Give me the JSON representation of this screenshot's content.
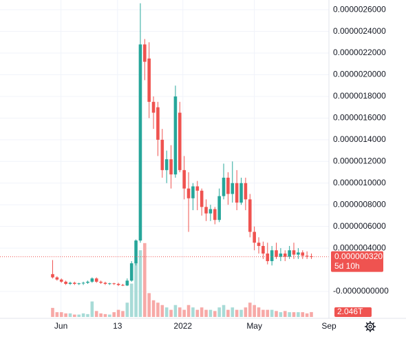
{
  "chart_data": {
    "type": "candlestick",
    "open": [
      1.6e-07,
      1.3e-07,
      1.1e-07,
      9e-08,
      7e-08,
      8e-08,
      7e-08,
      7.5e-08,
      8e-08,
      9e-08,
      1.2e-07,
      9e-08,
      8e-08,
      7e-08,
      7.5e-08,
      7e-08,
      6e-08,
      5.5e-08,
      1e-07,
      2.6e-07,
      4.7e-07,
      2.28e-06,
      2.15e-06,
      1.75e-06,
      1.7e-06,
      1.4e-06,
      1.12e-06,
      1.22e-06,
      1.08e-06,
      1.65e-06,
      1.12e-06,
      9.5e-07,
      8.6e-07,
      9.7e-07,
      9.3e-07,
      7.8e-07,
      7.2e-07,
      7.6e-07,
      6.6e-07,
      8.8e-07,
      1.05e-06,
      9e-07,
      1e-06,
      8.2e-07,
      1e-06,
      8.5e-07,
      5.5e-07,
      4.5e-07,
      4.2e-07,
      3.5e-07,
      2.8e-07,
      3.8e-07,
      3.2e-07,
      3.5e-07,
      3.2e-07,
      3.8e-07,
      3.4e-07,
      3.6e-07,
      3.3e-07,
      3.25e-07
    ],
    "high": [
      2.9e-07,
      1.4e-07,
      1.2e-07,
      1e-07,
      9e-08,
      9e-08,
      8e-08,
      9e-08,
      1e-07,
      1.3e-07,
      1.3e-07,
      1e-07,
      9e-08,
      8e-08,
      8e-08,
      8e-08,
      7e-08,
      1.2e-07,
      2.8e-07,
      4.8e-07,
      2.66e-06,
      2.33e-06,
      2.3e-06,
      1.8e-06,
      1.75e-06,
      1.5e-06,
      1.3e-06,
      1.35e-06,
      1.9e-06,
      1.75e-06,
      1.25e-06,
      1.1e-06,
      1e-06,
      1.02e-06,
      9.5e-07,
      8.5e-07,
      8e-07,
      7.8e-07,
      9.5e-07,
      1.18e-06,
      1.1e-06,
      1.2e-06,
      1.12e-06,
      1.05e-06,
      1.05e-06,
      9e-07,
      6e-07,
      5e-07,
      4.6e-07,
      4.5e-07,
      4.2e-07,
      4.5e-07,
      4e-07,
      3.8e-07,
      4.2e-07,
      4.5e-07,
      4e-07,
      3.8e-07,
      3.7e-07,
      3.5e-07
    ],
    "low": [
      1.2e-07,
      1e-07,
      8e-08,
      6e-08,
      6e-08,
      6e-08,
      6e-08,
      6e-08,
      7e-08,
      8e-08,
      8e-08,
      7e-08,
      6e-08,
      6e-08,
      6e-08,
      5e-08,
      5e-08,
      5e-08,
      9e-08,
      2.4e-07,
      4.5e-07,
      1.95e-06,
      1.6e-06,
      1.5e-06,
      1.25e-06,
      1.05e-06,
      1e-06,
      9.5e-07,
      1.05e-06,
      1.1e-06,
      8.5e-07,
      5.5e-07,
      7.5e-07,
      7.5e-07,
      7e-07,
      6.5e-07,
      6.5e-07,
      6.2e-07,
      6.4e-07,
      8.5e-07,
      8e-07,
      8.2e-07,
      7.5e-07,
      8e-07,
      7.5e-07,
      5e-07,
      3.8e-07,
      3.5e-07,
      3e-07,
      2.5e-07,
      2.4e-07,
      3e-07,
      2.8e-07,
      2.8e-07,
      3e-07,
      3e-07,
      3e-07,
      3e-07,
      3e-07,
      3e-07
    ],
    "close": [
      1.3e-07,
      1.1e-07,
      9e-08,
      7e-08,
      8e-08,
      7e-08,
      7.5e-08,
      8e-08,
      9e-08,
      1.2e-07,
      9e-08,
      8e-08,
      7e-08,
      7.5e-08,
      7e-08,
      6e-08,
      5.5e-08,
      1e-07,
      2.6e-07,
      4.7e-07,
      2.28e-06,
      2.12e-06,
      1.75e-06,
      1.65e-06,
      1.4e-06,
      1.12e-06,
      1.22e-06,
      1.08e-06,
      1.8e-06,
      1.12e-06,
      9.5e-07,
      8.6e-07,
      9.7e-07,
      9.3e-07,
      7.8e-07,
      7.2e-07,
      7.6e-07,
      6.6e-07,
      8.8e-07,
      1.05e-06,
      9e-07,
      1e-06,
      8.2e-07,
      1e-06,
      8.5e-07,
      5.5e-07,
      4.5e-07,
      4.2e-07,
      3.5e-07,
      2.8e-07,
      3.8e-07,
      3.2e-07,
      3.5e-07,
      3.2e-07,
      3.8e-07,
      3.4e-07,
      3.6e-07,
      3.3e-07,
      3.25e-07,
      3.201e-07
    ],
    "volume": [
      3.8,
      2,
      2,
      1.5,
      1.5,
      1,
      1,
      1.5,
      1.2,
      6.5,
      2.5,
      1.5,
      1.2,
      1,
      2,
      3,
      2.5,
      6,
      14,
      23,
      28,
      31,
      10,
      7,
      6,
      5,
      4,
      3,
      5,
      4,
      3,
      5,
      4,
      3,
      4,
      3,
      3,
      2.5,
      4,
      5,
      3,
      4,
      3,
      3,
      4,
      6,
      5,
      4,
      3,
      3,
      3,
      2.5,
      2,
      2.5,
      2,
      2,
      2,
      2,
      1.5,
      2.046
    ],
    "up_color": "#26a69a",
    "down_color": "#ef5350",
    "up_volume_color": "#a8dbd7",
    "down_volume_color": "#f7a9a7",
    "xlim": [
      -12,
      63
    ],
    "xticks": [
      {
        "value": 1.9,
        "label": "Jun"
      },
      {
        "value": 14.8,
        "label": "13"
      },
      {
        "value": 29.7,
        "label": "2022"
      },
      {
        "value": 46,
        "label": "May"
      },
      {
        "value": 63,
        "label": "Sep"
      }
    ],
    "ylim": [
      -2.48e-07,
      2.69e-06
    ],
    "yticks": [
      {
        "value": 0,
        "label": "-0.0000000000"
      },
      {
        "value": 4e-07,
        "label": "0.0000004000"
      },
      {
        "value": 6e-07,
        "label": "0.0000006000"
      },
      {
        "value": 8e-07,
        "label": "0.0000008000"
      },
      {
        "value": 1e-06,
        "label": "0.0000010000"
      },
      {
        "value": 1.2e-06,
        "label": "0.0000012000"
      },
      {
        "value": 1.4e-06,
        "label": "0.0000014000"
      },
      {
        "value": 1.6e-06,
        "label": "0.0000016000"
      },
      {
        "value": 1.8e-06,
        "label": "0.0000018000"
      },
      {
        "value": 2e-06,
        "label": "0.0000020000"
      },
      {
        "value": 2.2e-06,
        "label": "0.0000022000"
      },
      {
        "value": 2.4e-06,
        "label": "0.0000024000"
      },
      {
        "value": 2.6e-06,
        "label": "0.0000026000"
      }
    ],
    "vlim": [
      0,
      133
    ],
    "grid": true,
    "last_price_label": "0.0000003201",
    "countdown": "5d 10h",
    "last_volume_label": "2.046T"
  }
}
